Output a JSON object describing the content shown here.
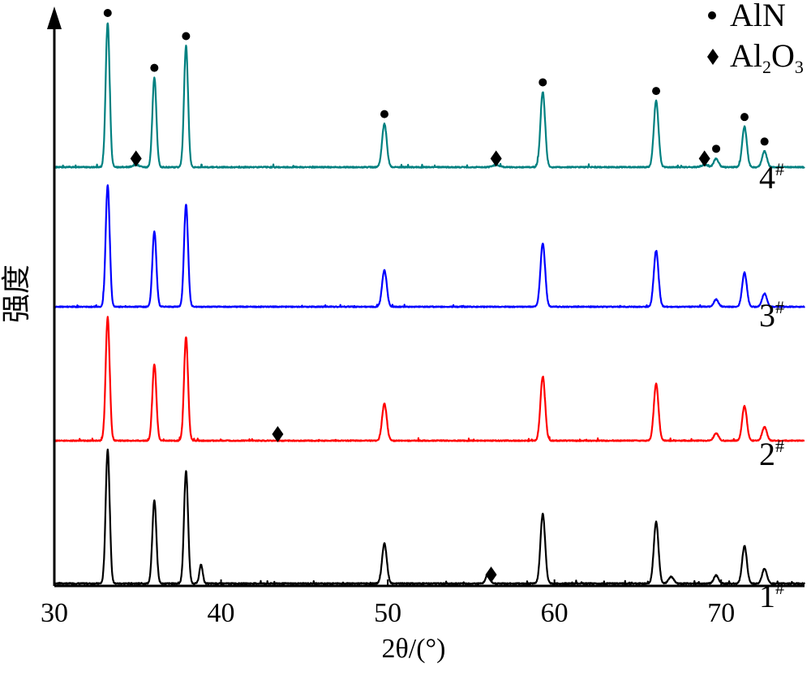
{
  "chart_data": {
    "type": "line",
    "xlabel": "2θ/(°)",
    "ylabel": "强度",
    "xlim": [
      30,
      75
    ],
    "xticks": [
      30,
      40,
      50,
      60,
      70
    ],
    "legend": {
      "placement": "top-right",
      "entries": [
        {
          "marker": "circle",
          "label": "AlN"
        },
        {
          "marker": "diamond",
          "label": "Al",
          "sub1": "2",
          "mid": "O",
          "sub2": "3"
        }
      ]
    },
    "peaks": [
      {
        "x": 33.2,
        "h": 1.0,
        "w": 0.12
      },
      {
        "x": 36.0,
        "h": 0.62,
        "w": 0.12
      },
      {
        "x": 37.9,
        "h": 0.84,
        "w": 0.12
      },
      {
        "x": 49.8,
        "h": 0.3,
        "w": 0.14
      },
      {
        "x": 59.3,
        "h": 0.52,
        "w": 0.14
      },
      {
        "x": 66.1,
        "h": 0.46,
        "w": 0.14
      },
      {
        "x": 69.7,
        "h": 0.06,
        "w": 0.14
      },
      {
        "x": 71.4,
        "h": 0.28,
        "w": 0.14
      },
      {
        "x": 72.6,
        "h": 0.11,
        "w": 0.14
      }
    ],
    "series": [
      {
        "label": "1",
        "sup": "#",
        "color": "#000000",
        "extra_peaks": [
          {
            "x": 38.8,
            "h": 0.14,
            "w": 0.1
          },
          {
            "x": 56.0,
            "h": 0.07,
            "w": 0.12
          },
          {
            "x": 67.0,
            "h": 0.05,
            "w": 0.15
          }
        ]
      },
      {
        "label": "2",
        "sup": "#",
        "color": "#ff0000",
        "extra_peaks": []
      },
      {
        "label": "3",
        "sup": "#",
        "color": "#0000ff",
        "extra_peaks": []
      },
      {
        "label": "4",
        "sup": "#",
        "color": "#008080",
        "extra_peaks": [
          {
            "x": 34.9,
            "h": 0.015,
            "w": 0.2
          },
          {
            "x": 56.5,
            "h": 0.015,
            "w": 0.2
          },
          {
            "x": 69.0,
            "h": 0.015,
            "w": 0.2
          }
        ]
      }
    ],
    "aln_markers": {
      "series": "4",
      "x": [
        33.2,
        36.0,
        37.9,
        49.8,
        59.3,
        66.1,
        69.7,
        71.4,
        72.6
      ]
    },
    "al2o3_markers": [
      {
        "series": "4",
        "x": 34.9
      },
      {
        "series": "4",
        "x": 56.5
      },
      {
        "series": "4",
        "x": 69.0
      },
      {
        "series": "2",
        "x": 43.4
      },
      {
        "series": "1",
        "x": 56.2
      }
    ]
  }
}
